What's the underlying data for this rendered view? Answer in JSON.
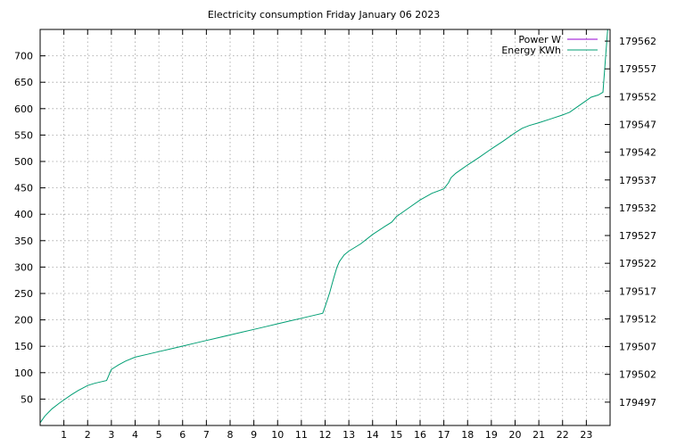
{
  "chart_data": {
    "type": "line",
    "title": "Electricity consumption Friday January 06 2023",
    "xlabel": "",
    "ylabel": "",
    "xlim": [
      0,
      24
    ],
    "ylim": [
      0,
      750
    ],
    "y2lim": [
      179492.8,
      179564.1
    ],
    "x_ticks": [
      1,
      2,
      3,
      4,
      5,
      6,
      7,
      8,
      9,
      10,
      11,
      12,
      13,
      14,
      15,
      16,
      17,
      18,
      19,
      20,
      21,
      22,
      23
    ],
    "y_ticks": [
      50,
      100,
      150,
      200,
      250,
      300,
      350,
      400,
      450,
      500,
      550,
      600,
      650,
      700
    ],
    "y2_ticks": [
      179497,
      179502,
      179507,
      179512,
      179517,
      179522,
      179527,
      179532,
      179537,
      179542,
      179547,
      179552,
      179557,
      179562
    ],
    "grid": true,
    "legend_position": "top-right",
    "series": [
      {
        "name": "Power W",
        "color": "#9400d3",
        "axis": "y",
        "x": [],
        "values": []
      },
      {
        "name": "Energy KWh",
        "color": "#009e73",
        "axis": "y2",
        "x": [
          0.0,
          0.2,
          0.5,
          0.8,
          1.0,
          1.3,
          1.6,
          2.0,
          2.3,
          2.6,
          2.8,
          2.9,
          3.0,
          3.3,
          3.6,
          4.0,
          4.5,
          5.0,
          5.5,
          6.0,
          6.5,
          7.0,
          7.5,
          8.0,
          8.5,
          9.0,
          9.5,
          10.0,
          10.5,
          11.0,
          11.5,
          11.9,
          12.0,
          12.1,
          12.2,
          12.3,
          12.4,
          12.5,
          12.6,
          12.8,
          13.0,
          13.5,
          14.0,
          14.5,
          14.8,
          15.0,
          15.5,
          16.0,
          16.5,
          17.0,
          17.2,
          17.3,
          17.5,
          17.8,
          18.0,
          18.5,
          19.0,
          19.5,
          20.0,
          20.3,
          20.6,
          21.0,
          21.5,
          22.0,
          22.3,
          22.6,
          23.0,
          23.2,
          23.5,
          23.7,
          23.9
        ],
        "values": [
          179493.3,
          179494.5,
          179495.8,
          179496.8,
          179497.4,
          179498.3,
          179499.1,
          179500.0,
          179500.4,
          179500.7,
          179500.9,
          179501.9,
          179502.9,
          179503.7,
          179504.4,
          179505.1,
          179505.6,
          179506.1,
          179506.6,
          179507.1,
          179507.6,
          179508.1,
          179508.6,
          179509.1,
          179509.6,
          179510.1,
          179510.6,
          179511.1,
          179511.6,
          179512.1,
          179512.6,
          179513.0,
          179514.2,
          179515.5,
          179516.8,
          179518.4,
          179519.9,
          179521.3,
          179522.3,
          179523.5,
          179524.2,
          179525.5,
          179527.2,
          179528.6,
          179529.4,
          179530.4,
          179531.9,
          179533.4,
          179534.6,
          179535.4,
          179536.5,
          179537.4,
          179538.2,
          179539.1,
          179539.7,
          179541.1,
          179542.6,
          179544.0,
          179545.5,
          179546.3,
          179546.8,
          179547.3,
          179548.0,
          179548.7,
          179549.2,
          179550.1,
          179551.3,
          179551.9,
          179552.3,
          179552.8,
          179564.1
        ]
      }
    ]
  }
}
